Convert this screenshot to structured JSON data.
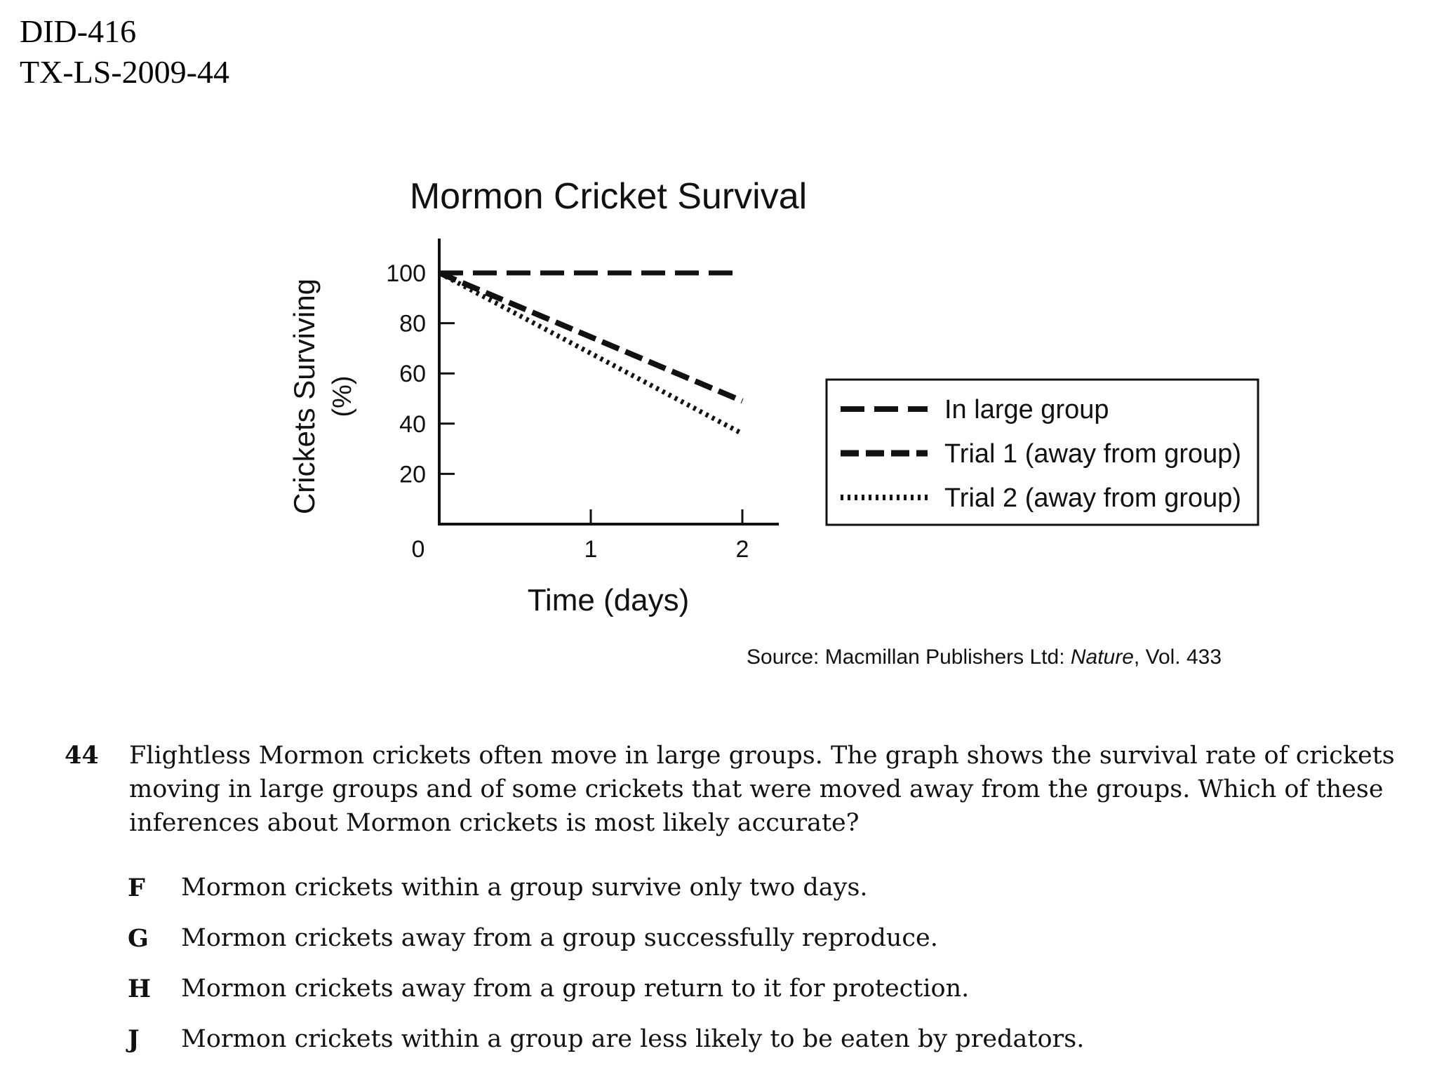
{
  "header": {
    "line1": "DID-416",
    "line2": "TX-LS-2009-44"
  },
  "chart_data": {
    "type": "line",
    "title": "Mormon Cricket Survival",
    "xlabel": "Time (days)",
    "ylabel": "Crickets Surviving",
    "ylabel_unit": "(%)",
    "x": [
      0,
      2
    ],
    "xticks": [
      "0",
      "1",
      "2"
    ],
    "yticks": [
      "20",
      "40",
      "60",
      "80",
      "100"
    ],
    "xlim": [
      0,
      2.2
    ],
    "ylim": [
      0,
      110
    ],
    "grid": false,
    "legend_position": "right",
    "series": [
      {
        "name": "In large group",
        "values": [
          100,
          100
        ],
        "style": "long-dash"
      },
      {
        "name": "Trial 1 (away from group)",
        "values": [
          100,
          49
        ],
        "style": "dash"
      },
      {
        "name": "Trial 2 (away from group)",
        "values": [
          100,
          36
        ],
        "style": "dotted"
      }
    ]
  },
  "source": {
    "prefix": "Source: Macmillan Publishers Ltd: ",
    "journal": "Nature",
    "suffix": ", Vol. 433"
  },
  "question": {
    "number": "44",
    "text": "Flightless Mormon crickets often move in large groups. The graph shows the survival rate of crickets moving in large groups and of some crickets that were moved away from the groups. Which of these inferences about Mormon crickets is most likely accurate?"
  },
  "options": [
    {
      "letter": "F",
      "text": "Mormon crickets within a group survive only two days."
    },
    {
      "letter": "G",
      "text": "Mormon crickets away from a group successfully reproduce."
    },
    {
      "letter": "H",
      "text": "Mormon crickets away from a group return to it for protection."
    },
    {
      "letter": "J",
      "text": "Mormon crickets within a group are less likely to be eaten by predators."
    }
  ]
}
